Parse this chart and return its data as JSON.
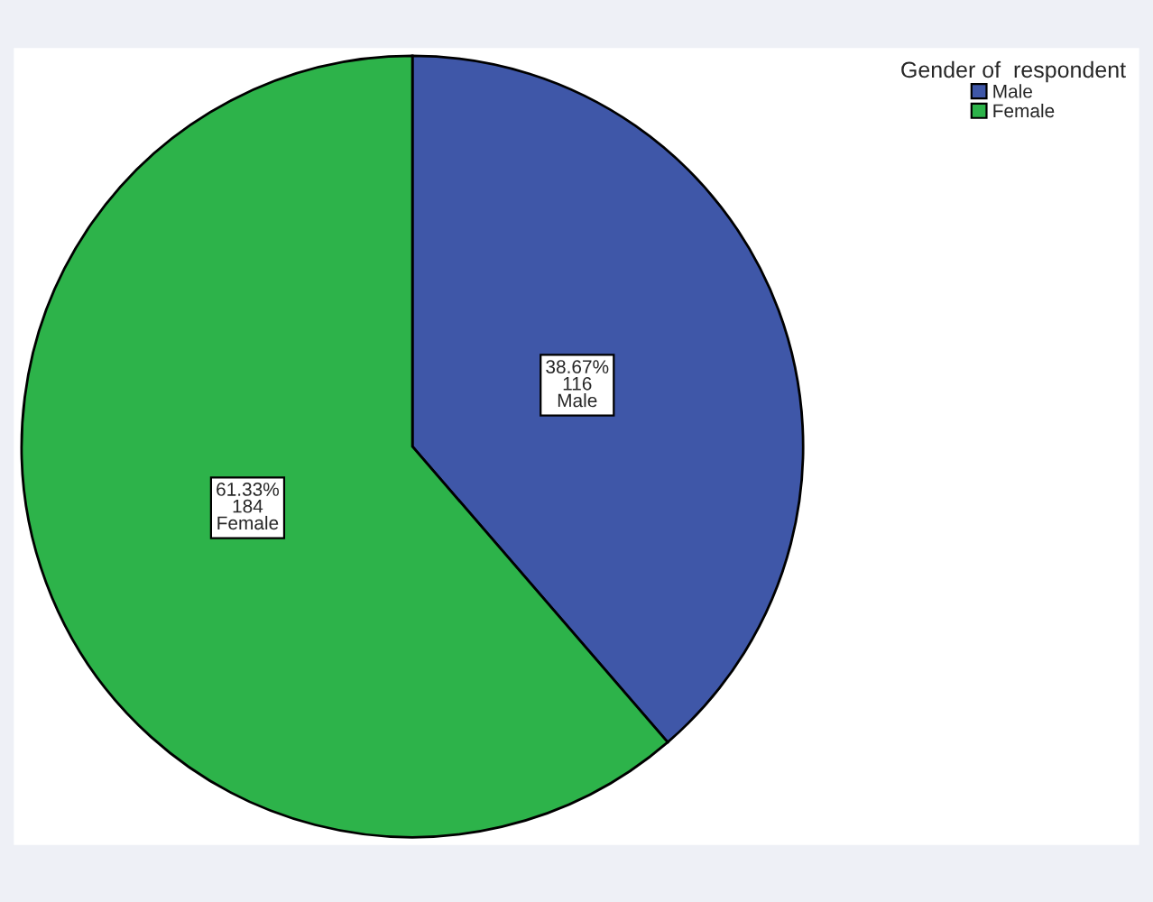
{
  "chart_data": {
    "type": "pie",
    "legend_title": "Gender of  respondent",
    "legend": "top right",
    "categories": [
      "Male",
      "Female"
    ],
    "values": [
      116,
      184
    ],
    "colors": [
      "#3f57a8",
      "#2db34a"
    ],
    "value_labels": [
      "38.67%\n116\nMale",
      "61.33%\n184\nFemale"
    ]
  }
}
